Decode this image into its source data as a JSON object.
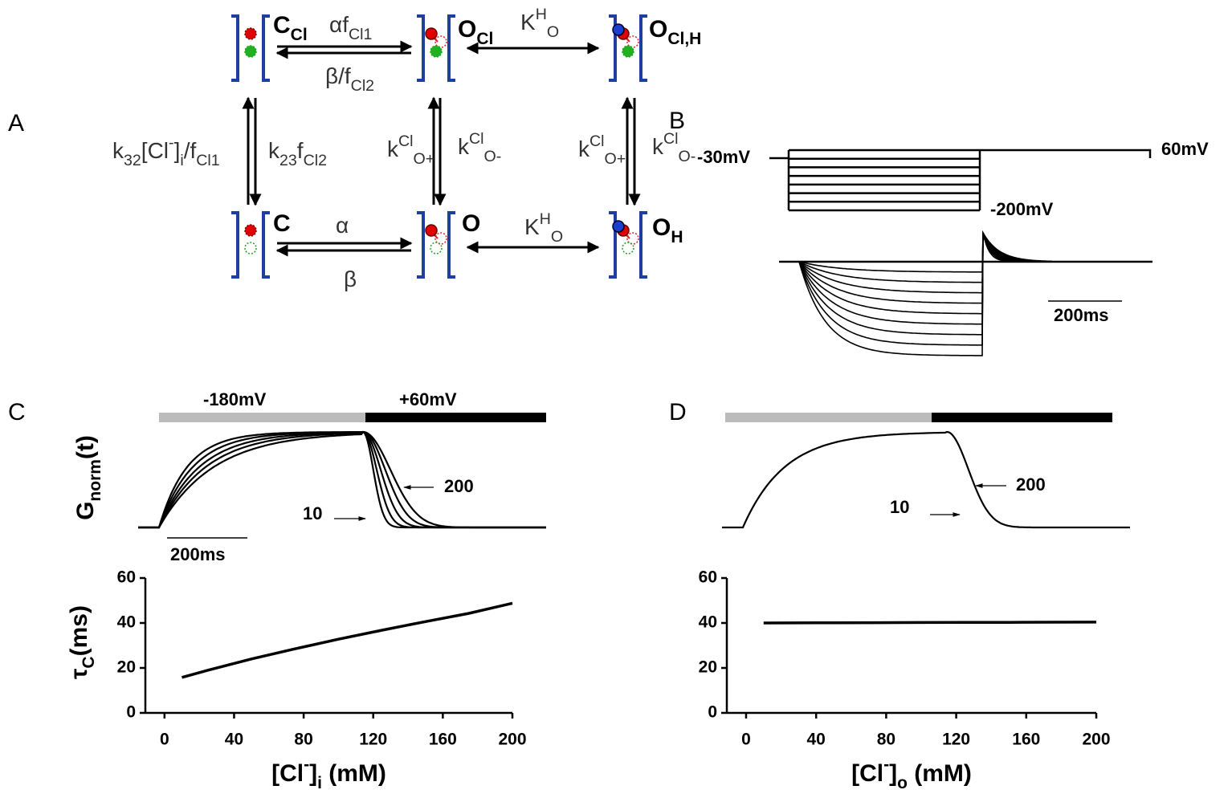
{
  "diagram": {
    "label": "A",
    "states": [
      [
        {
          "text": "C",
          "sub": "Cl"
        }
      ],
      [
        {
          "text": "O",
          "sub": "Cl"
        }
      ],
      [
        {
          "text": "O",
          "sub": "Cl,H"
        }
      ],
      [
        {
          "text": "C"
        }
      ],
      [
        {
          "text": "O"
        }
      ],
      [
        {
          "text": "O",
          "sub": "H"
        }
      ]
    ],
    "rates": [
      [
        {
          "text": "αf",
          "sub": "Cl1"
        }
      ],
      [
        {
          "text": "β/f",
          "sub": "Cl2"
        }
      ],
      [
        {
          "text": "K",
          "sup": "H",
          "sub": "O"
        }
      ],
      [
        {
          "text": "k",
          "sub": "32"
        },
        {
          "text": "[Cl",
          "sup": "-"
        },
        {
          "text": "]",
          "sub": "i"
        },
        {
          "text": "/f",
          "sub": "Cl1"
        }
      ],
      [
        {
          "text": "k",
          "sub": "23"
        },
        {
          "text": "f",
          "sub": "Cl2"
        }
      ],
      [
        {
          "text": "k",
          "sup": "Cl",
          "sub": "O+"
        }
      ],
      [
        {
          "text": "k",
          "sup": "Cl",
          "sub": "O-"
        }
      ],
      [
        {
          "text": "k",
          "sup": "Cl",
          "sub": "O+"
        }
      ],
      [
        {
          "text": "k",
          "sup": "Cl",
          "sub": "O-"
        }
      ],
      [
        {
          "text": "α"
        }
      ],
      [
        {
          "text": "β"
        }
      ],
      [
        {
          "text": "K",
          "sup": "H",
          "sub": "O"
        }
      ]
    ]
  },
  "protocol": {
    "label": "B",
    "holding": "-30mV",
    "tail": "60mV",
    "lowest": "-200mV",
    "scale_bar": "200ms"
  },
  "traces": [
    {
      "label": "C",
      "prepulse": "-180mV",
      "postpulse": "+60mV",
      "y_label": [
        {
          "text": "G",
          "sub": "norm"
        },
        {
          "text": "(t)"
        }
      ],
      "high": "200",
      "low": "10",
      "scale_bar": "200ms"
    },
    {
      "label": "D",
      "high": "200",
      "low": "10"
    }
  ],
  "chart_data": [
    {
      "type": "line",
      "x_label": [
        {
          "text": "[Cl",
          "sup": "-"
        },
        {
          "text": "]",
          "sub": "i"
        },
        {
          "text": " (mM)"
        }
      ],
      "y_label": [
        {
          "text": "τ",
          "sub": "C"
        },
        {
          "text": "(ms)"
        }
      ],
      "x": [
        10,
        25,
        50,
        75,
        100,
        125,
        150,
        175,
        200
      ],
      "values": [
        15.8,
        19,
        24,
        28.5,
        32.8,
        36.8,
        40.6,
        44.3,
        48.8
      ],
      "color": "#000000",
      "xlim": [
        -11,
        200
      ],
      "ylim": [
        0,
        60
      ],
      "xticks": [
        0,
        40,
        80,
        120,
        160,
        200
      ],
      "yticks": [
        0,
        20,
        40,
        60
      ]
    },
    {
      "type": "line",
      "x_label": [
        {
          "text": "[Cl",
          "sup": "-"
        },
        {
          "text": "]",
          "sub": "o"
        },
        {
          "text": " (mM)"
        }
      ],
      "y_label": [
        {
          "text": "τ",
          "sub": "C"
        },
        {
          "text": "(ms)"
        }
      ],
      "x": [
        10,
        25,
        50,
        75,
        100,
        125,
        150,
        175,
        200
      ],
      "values": [
        40,
        40.05,
        40.1,
        40.15,
        40.2,
        40.25,
        40.3,
        40.35,
        40.4
      ],
      "color": "#000000",
      "xlim": [
        -11,
        200
      ],
      "ylim": [
        0,
        60
      ],
      "xticks": [
        0,
        40,
        80,
        120,
        160,
        200
      ],
      "yticks": [
        0,
        20,
        40,
        60
      ]
    }
  ]
}
